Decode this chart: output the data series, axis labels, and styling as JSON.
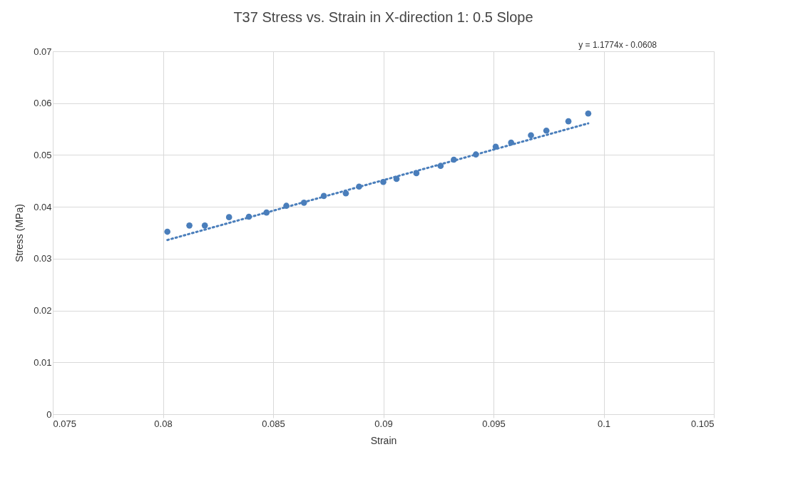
{
  "chart_data": {
    "type": "scatter",
    "title": "T37 Stress vs. Strain in X-direction 1: 0.5 Slope",
    "xlabel": "Strain",
    "ylabel": "Stress (MPa)",
    "xlim": [
      0.075,
      0.105
    ],
    "xticks": [
      0.075,
      0.08,
      0.085,
      0.09,
      0.095,
      0.1,
      0.105
    ],
    "ylim": [
      0,
      0.07
    ],
    "yticks": [
      0,
      0.01,
      0.02,
      0.03,
      0.04,
      0.05,
      0.06,
      0.07
    ],
    "grid": true,
    "legend": false,
    "annotations": [
      "y = 1.1774x - 0.0608"
    ],
    "series": [
      {
        "marker": "circle",
        "color": "#4a7ebb",
        "x": [
          0.0802,
          0.0812,
          0.0819,
          0.083,
          0.0839,
          0.0847,
          0.0856,
          0.0864,
          0.0873,
          0.0883,
          0.0889,
          0.09,
          0.0906,
          0.0915,
          0.0926,
          0.0932,
          0.0942,
          0.0951,
          0.0958,
          0.0967,
          0.0974,
          0.0984,
          0.0993
        ],
        "values": [
          0.0352,
          0.0364,
          0.0364,
          0.038,
          0.0381,
          0.0389,
          0.0402,
          0.0408,
          0.0421,
          0.0426,
          0.0439,
          0.0448,
          0.0454,
          0.0465,
          0.0479,
          0.0491,
          0.0501,
          0.0516,
          0.0524,
          0.0538,
          0.0547,
          0.0565,
          0.058
        ]
      },
      {
        "type": "line",
        "marker": "none",
        "color": "#4a7ebb",
        "line_style": "dotted",
        "x": [
          0.0802,
          0.0993
        ],
        "values": [
          0.0336,
          0.0561
        ]
      }
    ]
  }
}
